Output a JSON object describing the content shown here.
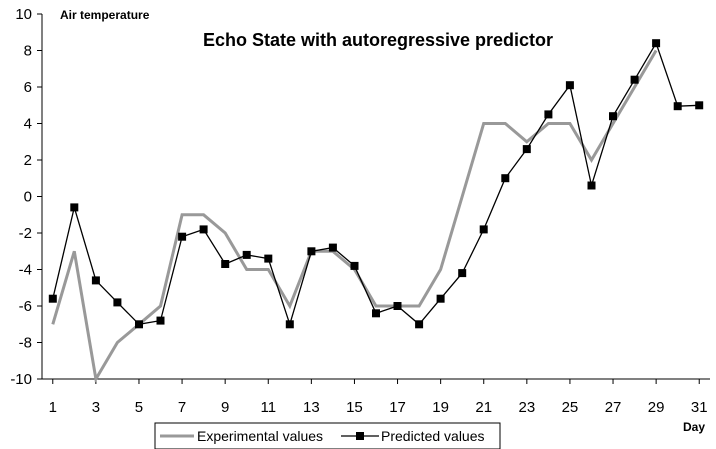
{
  "chart_data": {
    "type": "line",
    "title": "Echo State with autoregressive predictor",
    "xlabel": "Day",
    "ylabel": "Air temperature",
    "x": [
      1,
      2,
      3,
      4,
      5,
      6,
      7,
      8,
      9,
      10,
      11,
      12,
      13,
      14,
      15,
      16,
      17,
      18,
      19,
      20,
      21,
      22,
      23,
      24,
      25,
      26,
      27,
      28,
      29,
      30,
      31
    ],
    "x_ticks": [
      1,
      3,
      5,
      7,
      9,
      11,
      13,
      15,
      17,
      19,
      21,
      23,
      25,
      27,
      29,
      31
    ],
    "xlim": [
      0.5,
      31.5
    ],
    "ylim": [
      -10,
      10
    ],
    "y_ticks": [
      -10,
      -8,
      -6,
      -4,
      -2,
      0,
      2,
      4,
      6,
      8,
      10
    ],
    "grid": false,
    "legend_position": "bottom-center",
    "series": [
      {
        "name": "Experimental values",
        "color": "#999999",
        "marker": "none",
        "x": [
          1,
          2,
          3,
          4,
          5,
          6,
          7,
          8,
          9,
          10,
          11,
          12,
          13,
          14,
          15,
          16,
          17,
          18,
          19,
          20,
          21,
          22,
          23,
          24,
          25,
          26,
          27,
          28,
          29
        ],
        "values": [
          -7,
          -3,
          -10,
          -8,
          -7,
          -6,
          -1,
          -1,
          -2,
          -4,
          -4,
          -6,
          -3,
          -3,
          -4,
          -6,
          -6,
          -6,
          -4,
          0,
          4,
          4,
          3,
          4,
          4,
          2,
          4,
          6,
          8
        ]
      },
      {
        "name": "Predicted values",
        "color": "#000000",
        "marker": "square",
        "x": [
          1,
          2,
          3,
          4,
          5,
          6,
          7,
          8,
          9,
          10,
          11,
          12,
          13,
          14,
          15,
          16,
          17,
          18,
          19,
          20,
          21,
          22,
          23,
          24,
          25,
          26,
          27,
          28,
          29,
          30,
          31
        ],
        "values": [
          -5.6,
          -0.6,
          -4.6,
          -5.8,
          -7.0,
          -6.8,
          -2.2,
          -1.8,
          -3.7,
          -3.2,
          -3.4,
          -7.0,
          -3.0,
          -2.8,
          -3.8,
          -6.4,
          -6.0,
          -7.0,
          -5.6,
          -4.2,
          -1.8,
          1.0,
          2.6,
          4.5,
          6.1,
          0.6,
          4.4,
          6.4,
          8.4,
          4.95,
          5.0
        ]
      }
    ]
  }
}
